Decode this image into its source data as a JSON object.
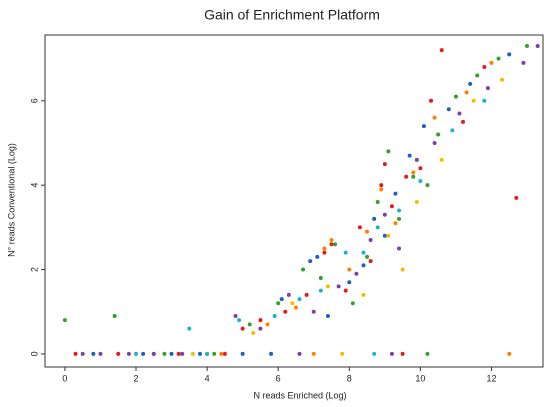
{
  "chart_data": {
    "type": "scatter",
    "title": "Gain of Enrichment Platform",
    "x_label": "N reads Enriched (Log)",
    "y_label": "N° reads Conventional (Log)",
    "xlim": [
      -0.56,
      13.45
    ],
    "ylim": [
      -0.31,
      7.56
    ],
    "xticks": [
      0,
      2,
      4,
      6,
      8,
      10,
      12
    ],
    "yticks": [
      0,
      2,
      4,
      6
    ],
    "series": [
      {
        "color": "#e41a1c",
        "x": [
          0.3,
          1.5,
          3.2,
          4.5,
          5.5,
          6.2,
          6.8,
          7.3,
          7.5,
          7.9,
          8.3,
          8.6,
          8.9,
          9.0,
          9.2,
          9.6,
          10.0,
          10.3,
          10.6,
          11.2,
          11.8,
          12.7,
          5.0,
          9.5
        ],
        "values": [
          0,
          0,
          0,
          0,
          0.8,
          1.0,
          1.4,
          2.4,
          2.6,
          1.5,
          3.0,
          2.2,
          4.0,
          4.5,
          3.5,
          4.2,
          4.4,
          6.0,
          7.2,
          5.5,
          6.8,
          3.7,
          0.6,
          0
        ]
      },
      {
        "color": "#33a02c",
        "x": [
          0,
          1.4,
          2.8,
          4.2,
          5.2,
          6.0,
          6.7,
          7.2,
          7.6,
          8.1,
          8.5,
          8.8,
          9.1,
          9.4,
          9.8,
          10.2,
          10.5,
          11.0,
          11.6,
          12.2,
          13.0,
          2.5,
          10.2
        ],
        "values": [
          0.8,
          0.9,
          0,
          0,
          0.7,
          1.2,
          2.0,
          1.8,
          2.6,
          1.2,
          2.3,
          3.6,
          4.8,
          3.2,
          4.2,
          4.0,
          5.2,
          6.1,
          6.6,
          7.0,
          7.3,
          0,
          0
        ]
      },
      {
        "color": "#1f5fc0",
        "x": [
          0.8,
          2.2,
          3.8,
          5.0,
          6.1,
          6.9,
          7.1,
          7.4,
          8.0,
          8.4,
          8.7,
          9.0,
          9.3,
          9.7,
          10.1,
          10.8,
          11.4,
          12.5,
          5.8,
          3.0
        ],
        "values": [
          0,
          0,
          0,
          0,
          1.3,
          2.2,
          2.3,
          0.9,
          1.7,
          2.1,
          3.2,
          2.8,
          3.8,
          4.7,
          5.4,
          5.8,
          6.4,
          7.1,
          0,
          0
        ]
      },
      {
        "color": "#7b3fa8",
        "x": [
          0.5,
          1.0,
          1.8,
          2.5,
          3.3,
          4.0,
          4.8,
          5.5,
          6.3,
          7.0,
          7.7,
          8.2,
          8.6,
          9.0,
          9.4,
          9.9,
          10.4,
          11.1,
          11.9,
          12.9,
          13.3,
          6.6,
          9.2
        ],
        "values": [
          0,
          0,
          0,
          0,
          0,
          0,
          0.9,
          0.6,
          1.4,
          1.0,
          1.6,
          1.9,
          2.7,
          3.3,
          2.5,
          4.6,
          5.0,
          5.7,
          6.3,
          6.9,
          7.3,
          0,
          0
        ]
      },
      {
        "color": "#ff7f00",
        "x": [
          4.4,
          5.7,
          6.5,
          7.3,
          7.5,
          8.0,
          8.5,
          8.9,
          9.3,
          9.8,
          10.4,
          11.3,
          12.0,
          7.0,
          12.5
        ],
        "values": [
          0,
          0.7,
          1.1,
          2.5,
          2.7,
          2.0,
          2.9,
          3.9,
          3.1,
          4.3,
          5.6,
          6.2,
          6.9,
          0,
          0
        ]
      },
      {
        "color": "#f0c000",
        "x": [
          3.6,
          5.3,
          6.4,
          7.4,
          8.4,
          9.1,
          9.5,
          9.9,
          10.6,
          11.5,
          12.3,
          7.8
        ],
        "values": [
          0,
          0.5,
          1.2,
          1.6,
          1.4,
          2.8,
          2.0,
          3.6,
          4.6,
          6.0,
          6.5,
          0
        ]
      },
      {
        "color": "#1fb3c8",
        "x": [
          2.0,
          3.5,
          4.9,
          5.9,
          6.6,
          7.2,
          7.9,
          8.4,
          8.8,
          9.4,
          10.0,
          10.9,
          11.8,
          8.7,
          4.0
        ],
        "values": [
          0,
          0.6,
          0.8,
          0.9,
          1.3,
          1.5,
          2.4,
          2.4,
          3.0,
          3.4,
          4.1,
          5.3,
          6.0,
          0,
          0
        ]
      }
    ]
  }
}
